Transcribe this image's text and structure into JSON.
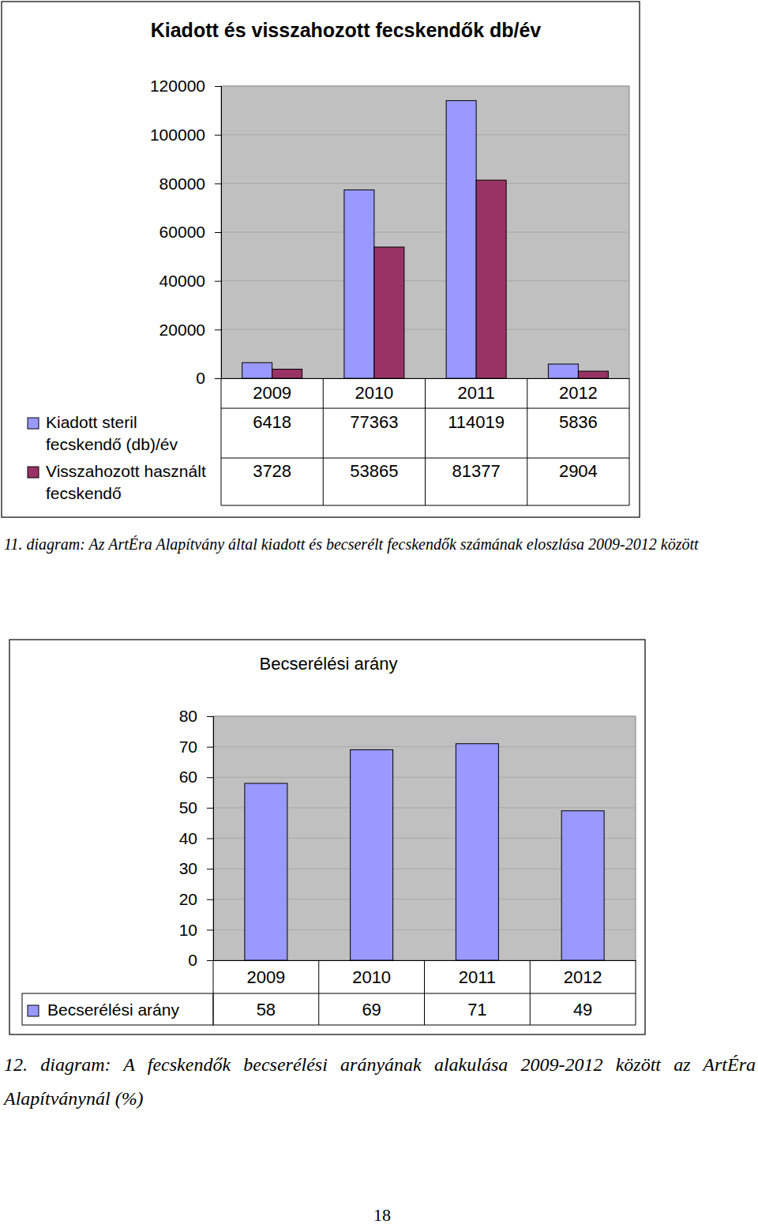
{
  "chart_data": [
    {
      "type": "bar",
      "title": "Kiadott és visszahozott fecskendők db/év",
      "categories": [
        "2009",
        "2010",
        "2011",
        "2012"
      ],
      "series": [
        {
          "name": "Kiadott steril fecskendő (db)/év",
          "color": "#9999ff",
          "values": [
            6418,
            77363,
            114019,
            5836
          ]
        },
        {
          "name": "Visszahozott használt fecskendő",
          "color": "#993366",
          "values": [
            3728,
            53865,
            81377,
            2904
          ]
        }
      ],
      "ylim": [
        0,
        120000
      ],
      "yticks": [
        0,
        20000,
        40000,
        60000,
        80000,
        100000,
        120000
      ],
      "grid": true,
      "legend": "left",
      "caption": "11. diagram: Az ArtÉra Alapítvány által kiadott és becserélt fecskendők számának eloszlása 2009-2012 között"
    },
    {
      "type": "bar",
      "title": "Becserélési arány",
      "categories": [
        "2009",
        "2010",
        "2011",
        "2012"
      ],
      "series": [
        {
          "name": "Becserélési arány",
          "color": "#9999ff",
          "values": [
            58,
            69,
            71,
            49
          ]
        }
      ],
      "ylim": [
        0,
        80
      ],
      "yticks": [
        0,
        10,
        20,
        30,
        40,
        50,
        60,
        70,
        80
      ],
      "grid": true,
      "legend": "left",
      "caption": "12. diagram: A fecskendők becserélési arányának alakulása 2009-2012 között az ArtÉra Alapítványnál (%)"
    }
  ],
  "page_number": 18
}
